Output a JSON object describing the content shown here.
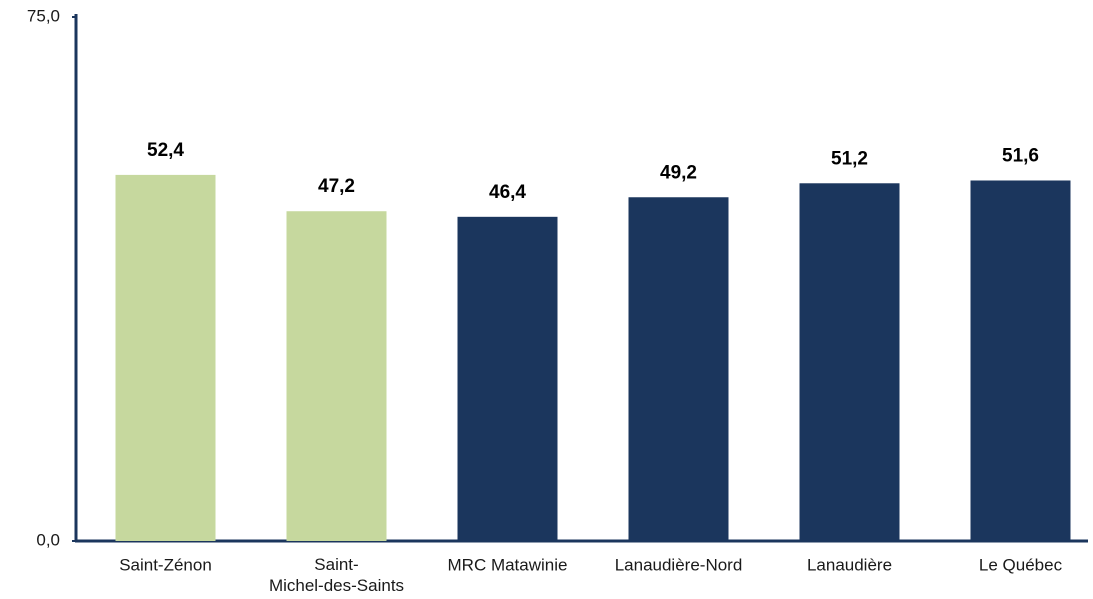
{
  "chart_data": {
    "type": "bar",
    "categories": [
      "Saint-Zénon",
      "Saint-Michel-des-Saints",
      "MRC Matawinie",
      "Lanaudière-Nord",
      "Lanaudière",
      "Le Québec"
    ],
    "values": [
      52.4,
      47.2,
      46.4,
      49.2,
      51.2,
      51.6
    ],
    "value_labels": [
      "52,4",
      "47,2",
      "46,4",
      "49,2",
      "51,2",
      "51,6"
    ],
    "colors": [
      "#c6d89e",
      "#c6d89e",
      "#1b365d",
      "#1b365d",
      "#1b365d",
      "#1b365d"
    ],
    "ylim": [
      0,
      75
    ],
    "yticks": [
      {
        "value": 0,
        "label": "0,0"
      },
      {
        "value": 75,
        "label": "75,0"
      }
    ],
    "grid": false
  }
}
